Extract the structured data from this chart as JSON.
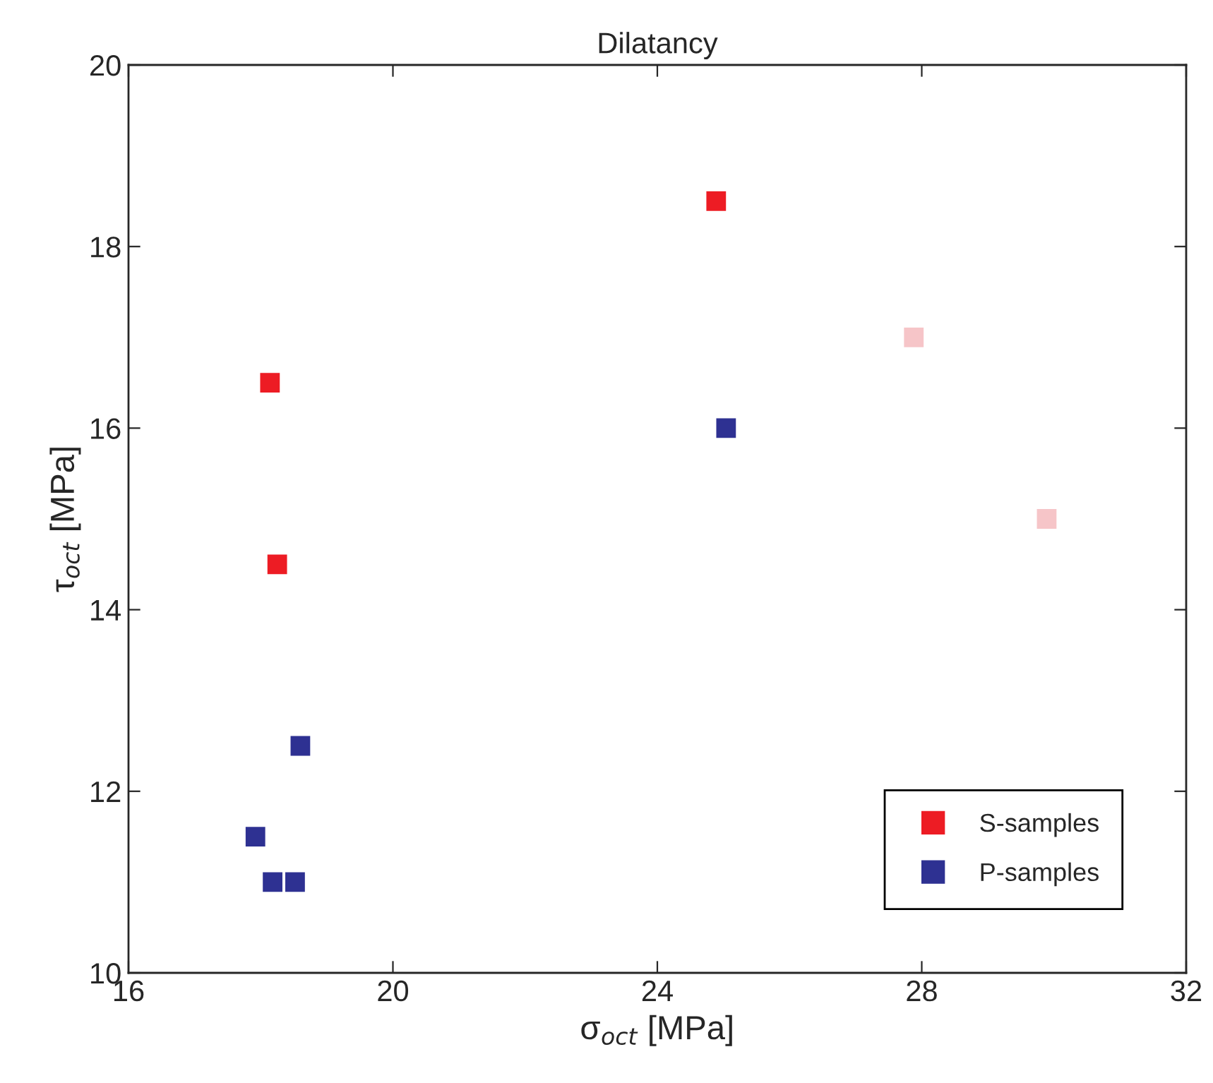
{
  "chart_data": {
    "type": "scatter",
    "title": "Dilatancy",
    "xlabel": "σ$_{oct}$ [MPa]",
    "ylabel": "τ$_{oct}$ [MPa]",
    "series": [
      {
        "name": "S-samples",
        "color": "#ed1c24",
        "x": [
          18.14,
          18.25,
          24.89
        ],
        "values": [
          16.5,
          14.5,
          18.5
        ]
      },
      {
        "color": "#f6c5c8",
        "x": [
          27.88,
          29.89
        ],
        "values": [
          17.0,
          15.0
        ]
      },
      {
        "name": "P-samples",
        "color": "#2e3192",
        "x": [
          25.04,
          18.6,
          17.92,
          18.18,
          18.52
        ],
        "values": [
          16.0,
          12.5,
          11.5,
          11.0,
          11.0
        ]
      }
    ],
    "xlim": [
      16,
      32
    ],
    "xticks": [
      16,
      20,
      24,
      28,
      32
    ],
    "ylim": [
      10,
      20
    ],
    "yticks": [
      10,
      12,
      14,
      16,
      18,
      20
    ],
    "marker": "square",
    "grid": false,
    "legend": "bottom right"
  }
}
